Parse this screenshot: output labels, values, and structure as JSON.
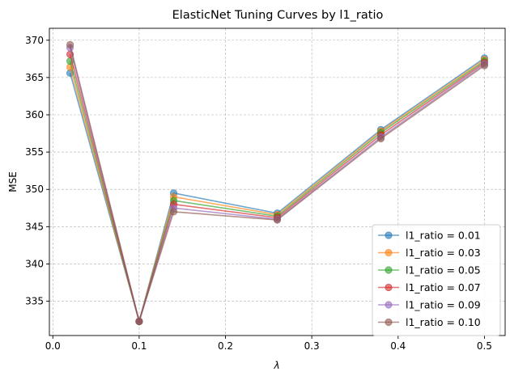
{
  "chart_data": {
    "type": "line",
    "title": "ElasticNet Tuning Curves by l1_ratio",
    "xlabel": "λ",
    "ylabel": "MSE",
    "xlim": [
      -0.004,
      0.524
    ],
    "ylim": [
      330.4,
      371.6
    ],
    "xticks": [
      0.0,
      0.1,
      0.2,
      0.3,
      0.4,
      0.5
    ],
    "xtick_labels": [
      "0.0",
      "0.1",
      "0.2",
      "0.3",
      "0.4",
      "0.5"
    ],
    "yticks": [
      335,
      340,
      345,
      350,
      355,
      360,
      365,
      370
    ],
    "ytick_labels": [
      "335",
      "340",
      "345",
      "350",
      "355",
      "360",
      "365",
      "370"
    ],
    "grid": true,
    "legend_position": "bottom-right",
    "x": [
      0.02,
      0.1,
      0.14,
      0.26,
      0.38,
      0.5
    ],
    "series": [
      {
        "name": "l1_ratio = 0.01",
        "color": "#1f77b4",
        "values": [
          365.6,
          332.3,
          349.5,
          346.8,
          358.0,
          367.6
        ]
      },
      {
        "name": "l1_ratio = 0.03",
        "color": "#ff7f0e",
        "values": [
          366.4,
          332.3,
          349.0,
          346.6,
          357.8,
          367.4
        ]
      },
      {
        "name": "l1_ratio = 0.05",
        "color": "#2ca02c",
        "values": [
          367.2,
          332.3,
          348.5,
          346.4,
          357.6,
          367.2
        ]
      },
      {
        "name": "l1_ratio = 0.07",
        "color": "#d62728",
        "values": [
          368.1,
          332.3,
          348.0,
          346.2,
          357.3,
          367.0
        ]
      },
      {
        "name": "l1_ratio = 0.09",
        "color": "#9467bd",
        "values": [
          369.0,
          332.3,
          347.5,
          346.0,
          357.0,
          366.8
        ]
      },
      {
        "name": "l1_ratio = 0.10",
        "color": "#8c564b",
        "values": [
          369.4,
          332.3,
          347.0,
          345.9,
          356.8,
          366.6
        ]
      }
    ]
  }
}
